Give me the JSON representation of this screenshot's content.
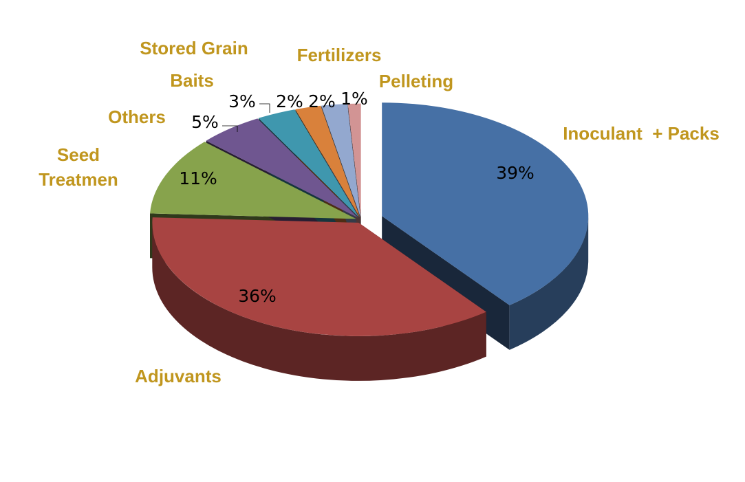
{
  "chart_data": {
    "type": "pie",
    "categories": [
      "Inoculant  + Packs",
      "Adjuvants",
      "Seed Treatmen",
      "Others",
      "Baits",
      "Stored Grain",
      "Fertilizers",
      "Pelleting"
    ],
    "values": [
      39,
      36,
      11,
      5,
      3,
      2,
      2,
      1
    ],
    "value_labels": [
      "39%",
      "36%",
      "11%",
      "5%",
      "3%",
      "2%",
      "2%",
      "1%"
    ],
    "colors": [
      "#4670a5",
      "#a84442",
      "#87a34c",
      "#6f5690",
      "#3f97ae",
      "#d9813b",
      "#93a8cf",
      "#d29494"
    ]
  }
}
